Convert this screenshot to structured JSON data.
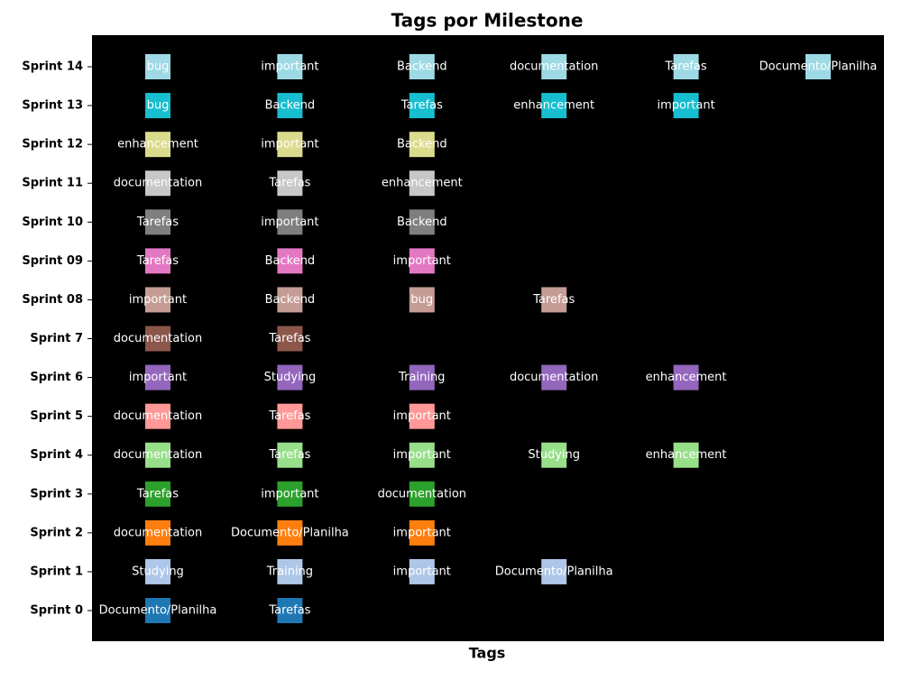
{
  "chart_data": {
    "type": "scatter",
    "title": "Tags por Milestone",
    "x_label": "Tags",
    "series": [
      {
        "name": "Sprint 0",
        "color": "#1f77b4",
        "tags": [
          "Documento/Planilha",
          "Tarefas"
        ]
      },
      {
        "name": "Sprint 1",
        "color": "#aec7e8",
        "tags": [
          "Studying",
          "Training",
          "important",
          "Documento/Planilha"
        ]
      },
      {
        "name": "Sprint 2",
        "color": "#ff7f0e",
        "tags": [
          "documentation",
          "Documento/Planilha",
          "important"
        ]
      },
      {
        "name": "Sprint 3",
        "color": "#2ca02c",
        "tags": [
          "Tarefas",
          "important",
          "documentation"
        ]
      },
      {
        "name": "Sprint 4",
        "color": "#98df8a",
        "tags": [
          "documentation",
          "Tarefas",
          "important",
          "Studying",
          "enhancement"
        ]
      },
      {
        "name": "Sprint 5",
        "color": "#ff9896",
        "tags": [
          "documentation",
          "Tarefas",
          "important"
        ]
      },
      {
        "name": "Sprint 6",
        "color": "#9467bd",
        "tags": [
          "important",
          "Studying",
          "Training",
          "documentation",
          "enhancement"
        ]
      },
      {
        "name": "Sprint 7",
        "color": "#8c564b",
        "tags": [
          "documentation",
          "Tarefas"
        ]
      },
      {
        "name": "Sprint 08",
        "color": "#c49c94",
        "tags": [
          "important",
          "Backend",
          "bug",
          "Tarefas"
        ]
      },
      {
        "name": "Sprint 09",
        "color": "#e377c2",
        "tags": [
          "Tarefas",
          "Backend",
          "important"
        ]
      },
      {
        "name": "Sprint 10",
        "color": "#7f7f7f",
        "tags": [
          "Tarefas",
          "important",
          "Backend"
        ]
      },
      {
        "name": "Sprint 11",
        "color": "#c7c7c7",
        "tags": [
          "documentation",
          "Tarefas",
          "enhancement"
        ]
      },
      {
        "name": "Sprint 12",
        "color": "#dbdb8d",
        "tags": [
          "enhancement",
          "important",
          "Backend"
        ]
      },
      {
        "name": "Sprint 13",
        "color": "#17becf",
        "tags": [
          "bug",
          "Backend",
          "Tarefas",
          "enhancement",
          "important"
        ]
      },
      {
        "name": "Sprint 14",
        "color": "#9edae5",
        "tags": [
          "bug",
          "important",
          "Backend",
          "documentation",
          "Tarefas",
          "Documento/Planilha"
        ]
      }
    ]
  }
}
